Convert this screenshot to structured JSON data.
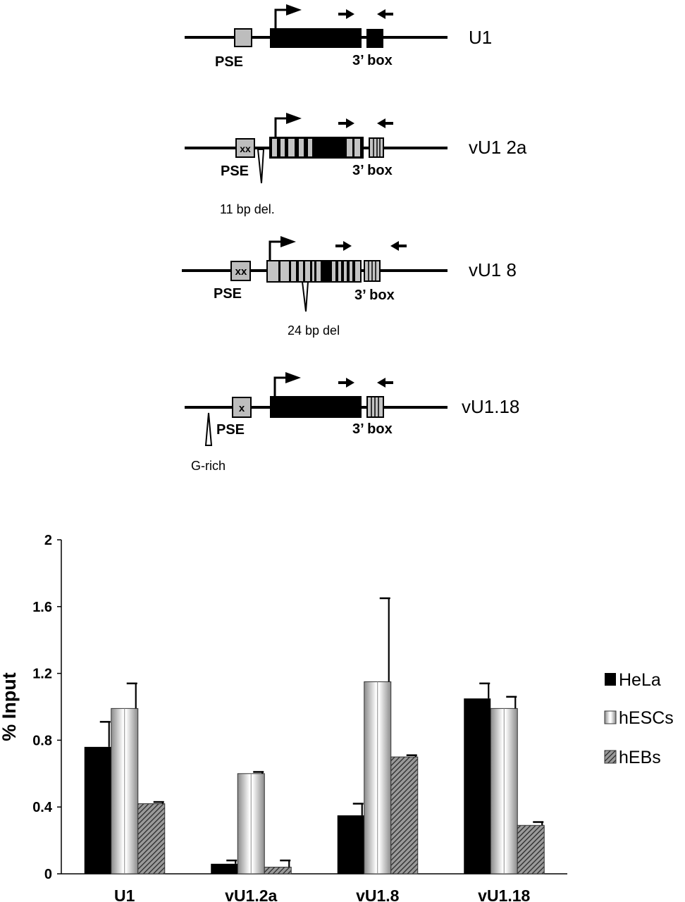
{
  "diagrams": [
    {
      "name": "U1",
      "pse_label": "PSE",
      "box_label": "3’ box",
      "pse_mark": "",
      "deletion_label": ""
    },
    {
      "name": "vU1 2a",
      "pse_label": "PSE",
      "box_label": "3’ box",
      "pse_mark": "xx",
      "deletion_label": "11 bp del."
    },
    {
      "name": "vU1 8",
      "pse_label": "PSE",
      "box_label": "3’ box",
      "pse_mark": "xx",
      "deletion_label": "24 bp del"
    },
    {
      "name": "vU1.18",
      "pse_label": "PSE",
      "box_label": "3’ box",
      "pse_mark": "x",
      "deletion_label": "G-rich"
    }
  ],
  "colors": {
    "gene_black": "#000000",
    "pse_gray": "#bdbdbd",
    "variant_gray": "#c4c4c4"
  },
  "chart_data": {
    "type": "bar",
    "categories": [
      "U1",
      "vU1.2a",
      "vU1.8",
      "vU1.18"
    ],
    "series": [
      {
        "name": "HeLa",
        "values": [
          0.76,
          0.06,
          0.35,
          1.05
        ],
        "errors": [
          0.15,
          0.02,
          0.07,
          0.09
        ]
      },
      {
        "name": "hESCs",
        "values": [
          0.99,
          0.6,
          1.15,
          0.99
        ],
        "errors": [
          0.15,
          0.01,
          0.5,
          0.07
        ]
      },
      {
        "name": "hEBs",
        "values": [
          0.42,
          0.04,
          0.7,
          0.29
        ],
        "errors": [
          0.01,
          0.04,
          0.01,
          0.02
        ]
      }
    ],
    "ylabel": "% Input",
    "xlabel": "",
    "ylim": [
      0,
      2
    ],
    "yticks": [
      "0",
      "0.4",
      "0.8",
      "1.2",
      "1.6",
      "2"
    ],
    "grid": false,
    "legend": "right"
  }
}
